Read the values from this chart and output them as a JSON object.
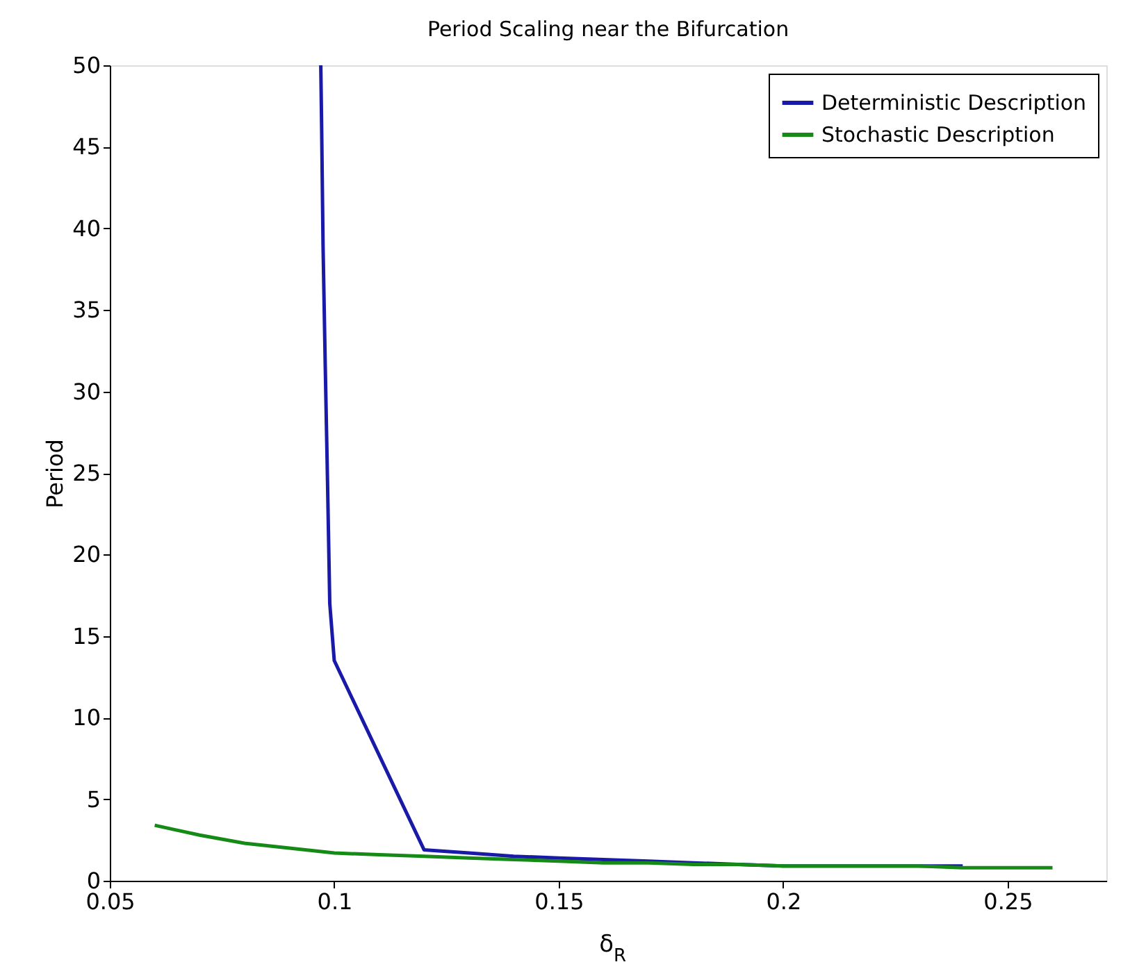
{
  "chart_data": {
    "type": "line",
    "title": "Period Scaling near the Bifurcation",
    "xlabel": "δ$_{R}$",
    "ylabel": "Period",
    "xlim": [
      0.05,
      0.272
    ],
    "xticks": [
      0.05,
      0.1,
      0.15,
      0.2,
      0.25
    ],
    "ylim": [
      0,
      50
    ],
    "yticks": [
      0,
      5,
      10,
      15,
      20,
      25,
      30,
      35,
      40,
      45,
      50
    ],
    "grid": false,
    "legend": "top right",
    "marker": "none",
    "line_style": "solid",
    "series": [
      {
        "name": "Deterministic Description",
        "color": "#1a1aa8",
        "x": [
          0.097,
          0.0972,
          0.0975,
          0.098,
          0.0985,
          0.099,
          0.1,
          0.12,
          0.13,
          0.14,
          0.15,
          0.16,
          0.17,
          0.18,
          0.19,
          0.2,
          0.21,
          0.22,
          0.23,
          0.24
        ],
        "values": [
          50,
          46,
          39,
          31.5,
          24.5,
          17,
          13.5,
          1.9,
          1.7,
          1.5,
          1.4,
          1.3,
          1.2,
          1.1,
          1.0,
          0.9,
          0.9,
          0.9,
          0.9,
          0.9
        ]
      },
      {
        "name": "Stochastic Description",
        "color": "#168a16",
        "x": [
          0.06,
          0.07,
          0.08,
          0.09,
          0.1,
          0.11,
          0.12,
          0.13,
          0.14,
          0.15,
          0.16,
          0.17,
          0.18,
          0.19,
          0.2,
          0.21,
          0.22,
          0.23,
          0.24,
          0.25,
          0.26
        ],
        "values": [
          3.4,
          2.8,
          2.3,
          2.0,
          1.7,
          1.6,
          1.5,
          1.4,
          1.3,
          1.2,
          1.1,
          1.1,
          1.0,
          1.0,
          0.9,
          0.9,
          0.9,
          0.9,
          0.8,
          0.8,
          0.8
        ]
      }
    ]
  }
}
